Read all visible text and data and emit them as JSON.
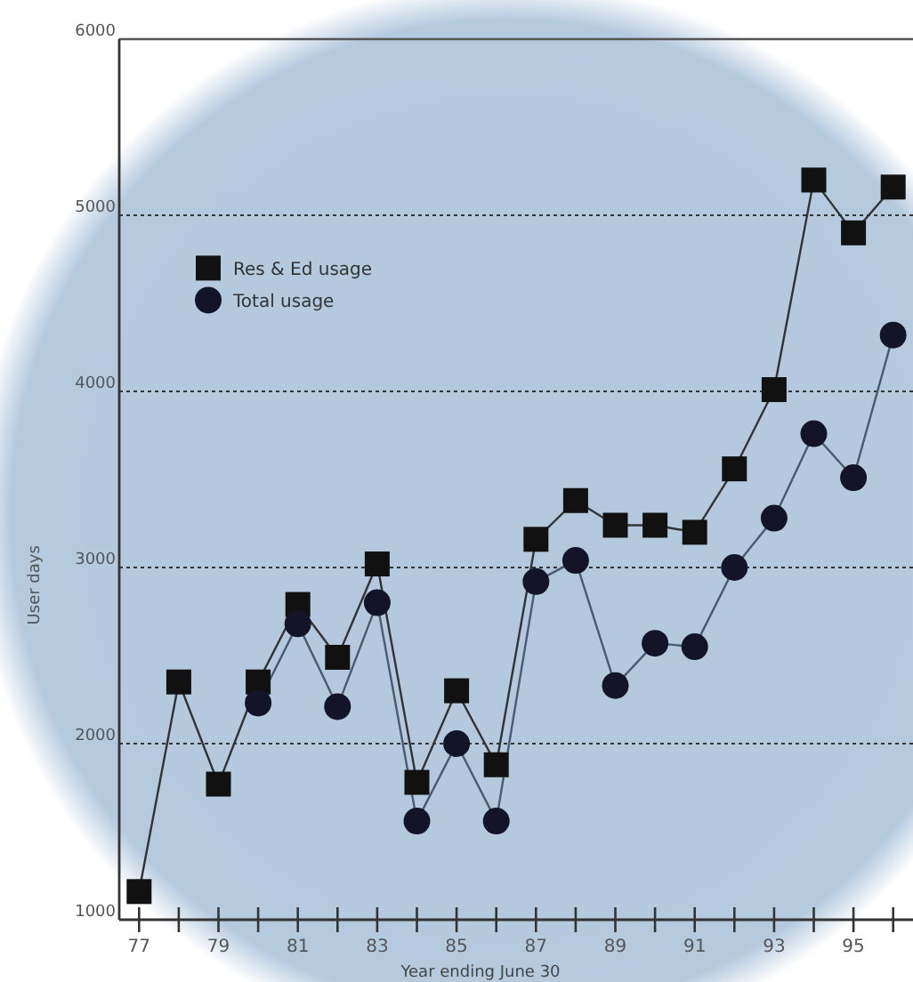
{
  "chart_data": {
    "type": "line",
    "xlabel": "Year ending June 30",
    "ylabel": "User days",
    "x": [
      77,
      78,
      79,
      80,
      81,
      82,
      83,
      84,
      85,
      86,
      87,
      88,
      89,
      90,
      91,
      92,
      93,
      94,
      95,
      96
    ],
    "series": [
      {
        "name": "Res & Ed usage",
        "color": "#111111",
        "marker": "square",
        "values": [
          1160,
          2350,
          1770,
          2350,
          2790,
          2490,
          3020,
          1780,
          2300,
          1880,
          3160,
          3380,
          3240,
          3240,
          3200,
          3560,
          4010,
          5200,
          4900,
          5160
        ]
      },
      {
        "name": "Total usage",
        "color": "#141428",
        "marker": "circle",
        "values": [
          null,
          null,
          null,
          2230,
          2680,
          2210,
          2800,
          1560,
          2000,
          1560,
          2920,
          3040,
          2330,
          2570,
          2550,
          3000,
          3280,
          3760,
          3510,
          4320
        ]
      }
    ],
    "xlim": [
      76.5,
      96.5
    ],
    "xticks": [
      77,
      {
        "value": 78,
        "label": null
      },
      79,
      {
        "value": 80,
        "label": null
      },
      81,
      {
        "value": 82,
        "label": null
      },
      83,
      {
        "value": 84,
        "label": null
      },
      85,
      {
        "value": 86,
        "label": null
      },
      87,
      {
        "value": 88,
        "label": null
      },
      89,
      {
        "value": 90,
        "label": null
      },
      91,
      {
        "value": 92,
        "label": null
      },
      93,
      {
        "value": 94,
        "label": null
      },
      95,
      {
        "value": 96,
        "label": null
      }
    ],
    "ylim": [
      1000,
      6000
    ],
    "yticks": [
      1000,
      2000,
      3000,
      4000,
      5000,
      6000
    ],
    "grid": "y",
    "line_style": "solid",
    "legend": "top left"
  }
}
